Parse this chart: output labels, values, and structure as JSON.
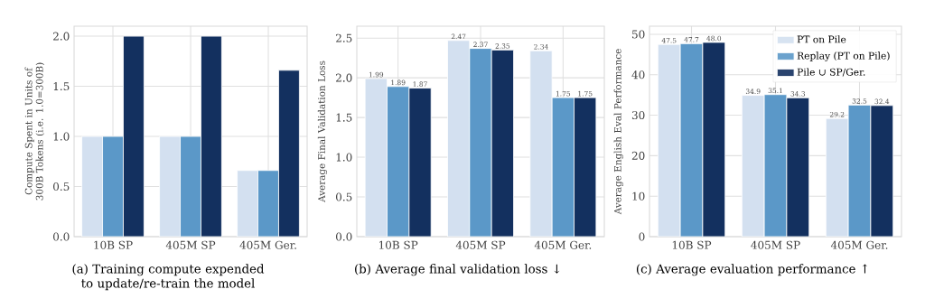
{
  "chart_data": [
    {
      "type": "bar",
      "ylabel": "Compute Spent in Units of 300B Tokens (i.e. 1.0=300B)",
      "categories": [
        "10B SP",
        "405M SP",
        "405M Ger."
      ],
      "ylim": [
        0,
        2.1
      ],
      "yticks": [
        {
          "value": 0,
          "label": "0.0"
        },
        {
          "value": 0.5,
          "label": "0.5"
        },
        {
          "value": 1,
          "label": "1.0"
        },
        {
          "value": 1.5,
          "label": "1.5"
        },
        {
          "value": 2,
          "label": "2.0"
        }
      ],
      "grid": true,
      "series": [
        {
          "color": "#d3e0f0",
          "values": [
            1.0,
            1.0,
            0.66
          ]
        },
        {
          "color": "#5b98c8",
          "values": [
            1.0,
            1.0,
            0.66
          ]
        },
        {
          "color": "#13305f",
          "values": [
            2.0,
            2.0,
            1.66
          ]
        }
      ],
      "annotations": [
        "(a) Training compute expended to update/re-train the model"
      ]
    },
    {
      "type": "bar",
      "ylabel": "Average Final Validation Loss",
      "categories": [
        "10B SP",
        "405M SP",
        "405M Ger."
      ],
      "ylim": [
        0,
        2.65
      ],
      "yticks": [
        {
          "value": 0,
          "label": "0.0"
        },
        {
          "value": 0.5,
          "label": "0.5"
        },
        {
          "value": 1,
          "label": "1.0"
        },
        {
          "value": 1.5,
          "label": "1.5"
        },
        {
          "value": 2,
          "label": "2.0"
        },
        {
          "value": 2.5,
          "label": "2.5"
        }
      ],
      "grid": true,
      "series": [
        {
          "color": "#d3e0f0",
          "values": [
            1.99,
            2.47,
            2.34
          ],
          "value_labels": [
            "1.99",
            "2.47",
            "2.34"
          ]
        },
        {
          "color": "#5b98c8",
          "values": [
            1.89,
            2.37,
            1.75
          ],
          "value_labels": [
            "1.89",
            "2.37",
            "1.75"
          ]
        },
        {
          "color": "#13305f",
          "values": [
            1.87,
            2.35,
            1.75
          ],
          "value_labels": [
            "1.87",
            "2.35",
            "1.75"
          ]
        }
      ],
      "annotations": [
        "(b) Average final validation loss ↓"
      ]
    },
    {
      "type": "bar",
      "ylabel": "Average English Eval Performance",
      "categories": [
        "10B SP",
        "405M SP",
        "405M Ger."
      ],
      "ylim": [
        0,
        52
      ],
      "yticks": [
        0,
        10,
        20,
        30,
        40,
        50
      ],
      "grid": true,
      "legend": "top right",
      "series": [
        {
          "name": "PT on Pile",
          "color": "#d3e0f0",
          "values": [
            47.5,
            34.9,
            29.2
          ],
          "value_labels": [
            "47.5",
            "34.9",
            "29.2"
          ]
        },
        {
          "name": "Replay (PT on Pile)",
          "color": "#5b98c8",
          "values": [
            47.7,
            35.1,
            32.5
          ],
          "value_labels": [
            "47.7",
            "35.1",
            "32.5"
          ]
        },
        {
          "name": "Pile ∪ SP/Ger.",
          "color": "#13305f",
          "values": [
            48.0,
            34.3,
            32.4
          ],
          "value_labels": [
            "48.0",
            "34.3",
            "32.4"
          ]
        }
      ],
      "annotations": [
        "(c) Average evaluation performance ↑"
      ]
    }
  ]
}
